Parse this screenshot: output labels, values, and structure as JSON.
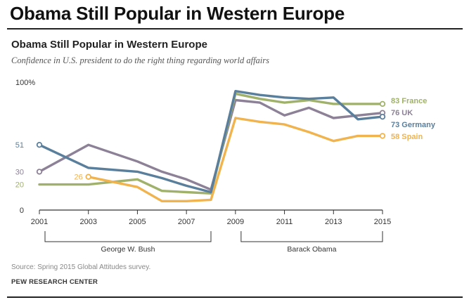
{
  "header": {
    "title": "Obama Still Popular in Western Europe"
  },
  "footer": {
    "source": "Source: Spring 2015 Global Attitudes survey.",
    "brand": "PEW RESEARCH CENTER"
  },
  "colors": {
    "France": "#9fb16a",
    "UK": "#8c8196",
    "Germany": "#5a7f9c",
    "Spain": "#f0b34e",
    "axis": "#333333",
    "text_label": "#555555"
  },
  "chart_data": {
    "type": "line",
    "title": "Obama Still Popular in Western Europe",
    "subtitle": "Confidence in U.S. president to do the right thing regarding world affairs",
    "xlim": [
      2001,
      2015
    ],
    "ylim": [
      0,
      100
    ],
    "x_ticks": [
      "2001",
      "2003",
      "2005",
      "2007",
      "2009",
      "2011",
      "2013",
      "2015"
    ],
    "y_tick_values": [
      0,
      20,
      30,
      51,
      100
    ],
    "y_tick_labels": [
      "0",
      "20",
      "30",
      "51",
      "100%"
    ],
    "periods": [
      {
        "label": "George W. Bush",
        "start": 2001,
        "end": 2008
      },
      {
        "label": "Barack Obama",
        "start": 2009,
        "end": 2015
      }
    ],
    "grid": false,
    "legend": "end-labels",
    "series": [
      {
        "name": "France",
        "end_label": "83 France",
        "points": [
          [
            2001,
            20
          ],
          [
            2003,
            20
          ],
          [
            2005,
            24
          ],
          [
            2006,
            15
          ],
          [
            2007,
            14
          ],
          [
            2008,
            13
          ],
          [
            2009,
            91
          ],
          [
            2010,
            87
          ],
          [
            2011,
            84
          ],
          [
            2012,
            86
          ],
          [
            2013,
            83
          ],
          [
            2014,
            83
          ],
          [
            2015,
            83
          ]
        ]
      },
      {
        "name": "UK",
        "end_label": "76 UK",
        "start_label": "30",
        "points": [
          [
            2001,
            30
          ],
          [
            2003,
            51
          ],
          [
            2005,
            38
          ],
          [
            2006,
            30
          ],
          [
            2007,
            24
          ],
          [
            2008,
            16
          ],
          [
            2009,
            86
          ],
          [
            2010,
            84
          ],
          [
            2011,
            74
          ],
          [
            2012,
            80
          ],
          [
            2013,
            72
          ],
          [
            2014,
            74
          ],
          [
            2015,
            76
          ]
        ]
      },
      {
        "name": "Germany",
        "end_label": "73 Germany",
        "start_label": "51",
        "points": [
          [
            2001,
            51
          ],
          [
            2003,
            33
          ],
          [
            2005,
            30
          ],
          [
            2006,
            25
          ],
          [
            2007,
            19
          ],
          [
            2008,
            14
          ],
          [
            2009,
            93
          ],
          [
            2010,
            90
          ],
          [
            2011,
            88
          ],
          [
            2012,
            87
          ],
          [
            2013,
            88
          ],
          [
            2014,
            71
          ],
          [
            2015,
            73
          ]
        ]
      },
      {
        "name": "Spain",
        "end_label": "58 Spain",
        "start_label": "26",
        "points": [
          [
            2003,
            26
          ],
          [
            2005,
            18
          ],
          [
            2006,
            7
          ],
          [
            2007,
            7
          ],
          [
            2008,
            8
          ],
          [
            2009,
            72
          ],
          [
            2010,
            69
          ],
          [
            2011,
            67
          ],
          [
            2012,
            61
          ],
          [
            2013,
            54
          ],
          [
            2014,
            58
          ],
          [
            2015,
            58
          ]
        ]
      }
    ]
  }
}
